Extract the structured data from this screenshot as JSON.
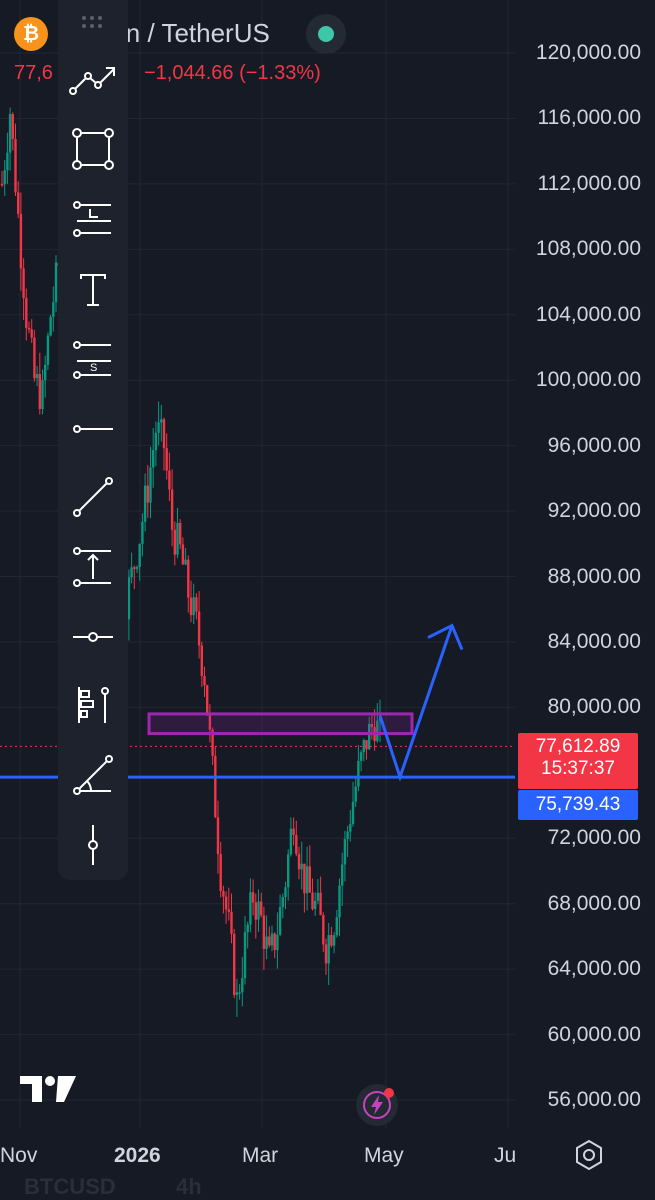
{
  "header": {
    "coin_icon_symbol": "₿",
    "symbol_partial": "in / TetherUS",
    "last_price_partial": "77,6",
    "change_text": "−1,044.66 (−1.33%)",
    "status_color": "#3ec6a8"
  },
  "toolbar": {
    "tools": [
      {
        "name": "trend-line-tools-icon"
      },
      {
        "name": "rectangle-icon"
      },
      {
        "name": "long-position-icon"
      },
      {
        "name": "text-icon"
      },
      {
        "name": "short-position-icon"
      },
      {
        "name": "horizontal-ray-icon"
      },
      {
        "name": "trend-line-icon"
      },
      {
        "name": "price-range-icon"
      },
      {
        "name": "horizontal-line-icon"
      },
      {
        "name": "bars-pattern-icon"
      },
      {
        "name": "trend-angle-icon"
      },
      {
        "name": "vertical-line-icon"
      }
    ]
  },
  "chart_data": {
    "type": "candlestick",
    "symbol": "BTCUSD",
    "interval": "4h",
    "y_axis": {
      "ticks": [
        "120,000.00",
        "116,000.00",
        "112,000.00",
        "108,000.00",
        "104,000.00",
        "100,000.00",
        "96,000.00",
        "92,000.00",
        "88,000.00",
        "84,000.00",
        "80,000.00",
        "72,000.00",
        "68,000.00",
        "64,000.00",
        "60,000.00",
        "56,000.00"
      ],
      "tick_values": [
        120000,
        116000,
        112000,
        108000,
        104000,
        100000,
        96000,
        92000,
        88000,
        84000,
        80000,
        72000,
        68000,
        64000,
        60000,
        56000
      ],
      "range": [
        55000,
        122000
      ]
    },
    "x_axis": {
      "ticks": [
        "Nov",
        "2026",
        "Mar",
        "May",
        "Ju"
      ]
    },
    "current_price": {
      "label": "77,612.89",
      "countdown": "15:37:37",
      "value": 77612.89,
      "color": "#f23645"
    },
    "horizontal_line": {
      "label": "75,739.43",
      "value": 75739.43,
      "color": "#2962ff"
    },
    "resistance_zone": {
      "low": 78400,
      "high": 79600,
      "color": "#9c27b0"
    },
    "path_projection": {
      "start_value": 79500,
      "dip_value": 75739.43,
      "target_value": 85000,
      "color": "#2962ff"
    },
    "price_anchor_points": [
      [
        0,
        112000
      ],
      [
        3,
        116500
      ],
      [
        6,
        110000
      ],
      [
        9,
        104000
      ],
      [
        12,
        100000
      ],
      [
        15,
        99000
      ],
      [
        18,
        104000
      ],
      [
        21,
        107000
      ],
      [
        24,
        101000
      ],
      [
        27,
        95500
      ],
      [
        30,
        91500
      ],
      [
        33,
        88000
      ],
      [
        36,
        85500
      ],
      [
        39,
        83000
      ],
      [
        42,
        84500
      ],
      [
        45,
        86000
      ],
      [
        48,
        88000
      ],
      [
        51,
        90500
      ],
      [
        54,
        93500
      ],
      [
        57,
        97000
      ],
      [
        60,
        96000
      ],
      [
        63,
        91000
      ],
      [
        66,
        89500
      ],
      [
        69,
        87000
      ],
      [
        72,
        85000
      ],
      [
        75,
        82000
      ],
      [
        78,
        76000
      ],
      [
        81,
        70000
      ],
      [
        84,
        66500
      ],
      [
        87,
        62000
      ],
      [
        90,
        65500
      ],
      [
        93,
        68500
      ],
      [
        96,
        67000
      ],
      [
        99,
        64500
      ],
      [
        102,
        66500
      ],
      [
        105,
        69500
      ],
      [
        108,
        73500
      ],
      [
        111,
        70000
      ],
      [
        114,
        68500
      ],
      [
        117,
        67500
      ],
      [
        120,
        65500
      ],
      [
        123,
        67000
      ],
      [
        126,
        70500
      ],
      [
        129,
        73500
      ],
      [
        132,
        76000
      ],
      [
        135,
        78000
      ],
      [
        138,
        79200
      ],
      [
        141,
        77600
      ]
    ]
  },
  "bottom": {
    "symbol_text": "BTCUSD",
    "interval_text": "4h"
  }
}
